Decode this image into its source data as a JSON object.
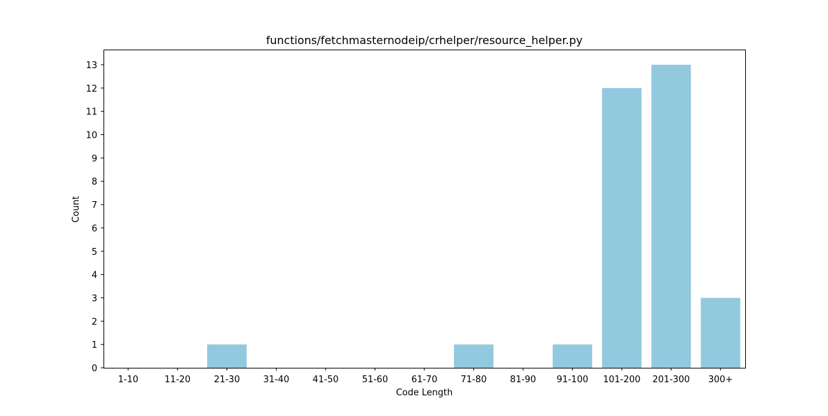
{
  "chart_data": {
    "type": "bar",
    "title": "functions/fetchmasternodeip/crhelper/resource_helper.py",
    "xlabel": "Code Length",
    "ylabel": "Count",
    "categories": [
      "1-10",
      "11-20",
      "21-30",
      "31-40",
      "41-50",
      "51-60",
      "61-70",
      "71-80",
      "81-90",
      "91-100",
      "101-200",
      "201-300",
      "300+"
    ],
    "values": [
      0,
      0,
      1,
      0,
      0,
      0,
      0,
      1,
      0,
      1,
      12,
      13,
      3
    ],
    "ylim": [
      0,
      13.65
    ],
    "yticks": [
      0,
      1,
      2,
      3,
      4,
      5,
      6,
      7,
      8,
      9,
      10,
      11,
      12,
      13
    ],
    "bar_color": "#92c9de",
    "grid": false,
    "legend": "none"
  }
}
